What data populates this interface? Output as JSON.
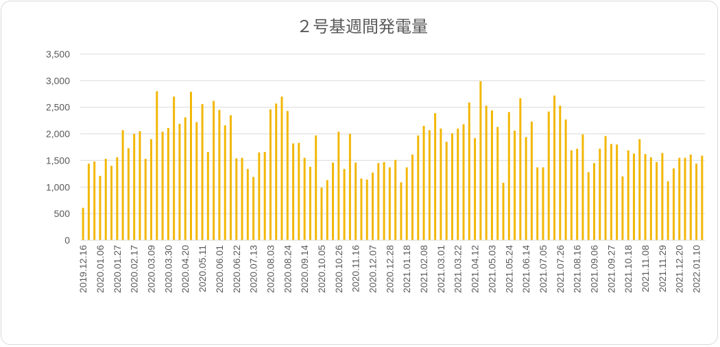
{
  "chart_data": {
    "type": "bar",
    "title": "２号基週間発電量",
    "xlabel": "",
    "ylabel": "",
    "ylim": [
      0,
      3500
    ],
    "y_ticks": [
      "0",
      "500",
      "1,000",
      "1,500",
      "2,000",
      "2,500",
      "3,000",
      "3,500"
    ],
    "grid": true,
    "bar_color": "#f2b705",
    "categories": [
      "2019.12.16",
      "2019.12.23",
      "2019.12.30",
      "2020.01.06",
      "2020.01.13",
      "2020.01.20",
      "2020.01.27",
      "2020.02.03",
      "2020.02.10",
      "2020.02.17",
      "2020.02.24",
      "2020.03.02",
      "2020.03.09",
      "2020.03.16",
      "2020.03.23",
      "2020.03.30",
      "2020.04.06",
      "2020.04.13",
      "2020.04.20",
      "2020.04.27",
      "2020.05.04",
      "2020.05.11",
      "2020.05.18",
      "2020.05.25",
      "2020.06.01",
      "2020.06.08",
      "2020.06.15",
      "2020.06.22",
      "2020.06.29",
      "2020.07.06",
      "2020.07.13",
      "2020.07.20",
      "2020.07.27",
      "2020.08.03",
      "2020.08.10",
      "2020.08.17",
      "2020.08.24",
      "2020.08.31",
      "2020.09.07",
      "2020.09.14",
      "2020.09.21",
      "2020.09.28",
      "2020.10.05",
      "2020.10.12",
      "2020.10.19",
      "2020.10.26",
      "2020.11.02",
      "2020.11.09",
      "2020.11.16",
      "2020.11.23",
      "2020.11.30",
      "2020.12.07",
      "2020.12.14",
      "2020.12.21",
      "2020.12.28",
      "2021.01.04",
      "2021.01.11",
      "2021.01.18",
      "2021.01.25",
      "2021.02.01",
      "2021.02.08",
      "2021.02.15",
      "2021.02.22",
      "2021.03.01",
      "2021.03.08",
      "2021.03.15",
      "2021.03.22",
      "2021.03.29",
      "2021.04.05",
      "2021.04.12",
      "2021.04.19",
      "2021.04.26",
      "2021.05.03",
      "2021.05.10",
      "2021.05.17",
      "2021.05.24",
      "2021.05.31",
      "2021.06.07",
      "2021.06.14",
      "2021.06.21",
      "2021.06.28",
      "2021.07.05",
      "2021.07.12",
      "2021.07.19",
      "2021.07.26",
      "2021.08.02",
      "2021.08.09",
      "2021.08.16",
      "2021.08.23",
      "2021.08.30",
      "2021.09.06",
      "2021.09.13",
      "2021.09.20",
      "2021.09.27",
      "2021.10.04",
      "2021.10.11",
      "2021.10.18",
      "2021.10.25",
      "2021.11.01",
      "2021.11.08",
      "2021.11.15",
      "2021.11.22",
      "2021.11.29",
      "2021.12.06",
      "2021.12.13",
      "2021.12.20",
      "2021.12.27",
      "2022.01.03",
      "2022.01.10",
      "2022.01.17"
    ],
    "x_tick_labels": [
      "2019.12.16",
      "2020.01.06",
      "2020.01.27",
      "2020.02.17",
      "2020.03.09",
      "2020.03.30",
      "2020.04.20",
      "2020.05.11",
      "2020.06.01",
      "2020.06.22",
      "2020.07.13",
      "2020.08.03",
      "2020.08.24",
      "2020.09.14",
      "2020.10.05",
      "2020.10.26",
      "2020.11.16",
      "2020.12.07",
      "2020.12.28",
      "2021.01.18",
      "2021.02.08",
      "2021.03.01",
      "2021.03.22",
      "2021.04.12",
      "2021.05.03",
      "2021.05.24",
      "2021.06.14",
      "2021.07.05",
      "2021.07.26",
      "2021.08.16",
      "2021.09.06",
      "2021.09.27",
      "2021.10.18",
      "2021.11.08",
      "2021.11.29",
      "2021.12.20",
      "2022.01.10"
    ],
    "values": [
      610,
      1440,
      1480,
      1210,
      1530,
      1400,
      1560,
      2070,
      1730,
      2000,
      2050,
      1530,
      1900,
      2800,
      2040,
      2110,
      2700,
      2190,
      2310,
      2790,
      2220,
      2560,
      1660,
      2620,
      2450,
      2160,
      2350,
      1540,
      1550,
      1340,
      1190,
      1650,
      1660,
      2460,
      2570,
      2700,
      2430,
      1820,
      1830,
      1550,
      1380,
      1970,
      990,
      1130,
      1460,
      2040,
      1340,
      2000,
      1460,
      1160,
      1140,
      1270,
      1450,
      1470,
      1370,
      1510,
      1090,
      1370,
      1610,
      1970,
      2150,
      2070,
      2390,
      2100,
      1850,
      2010,
      2100,
      2180,
      2590,
      1920,
      2990,
      2530,
      2440,
      2130,
      1080,
      2410,
      2060,
      2670,
      1940,
      2230,
      1370,
      1370,
      2420,
      2720,
      2530,
      2270,
      1690,
      1720,
      1990,
      1280,
      1450,
      1720,
      1960,
      1810,
      1800,
      1200,
      1690,
      1630,
      1900,
      1620,
      1560,
      1470,
      1640,
      1110,
      1350,
      1550,
      1550,
      1610,
      1440,
      1590
    ]
  }
}
